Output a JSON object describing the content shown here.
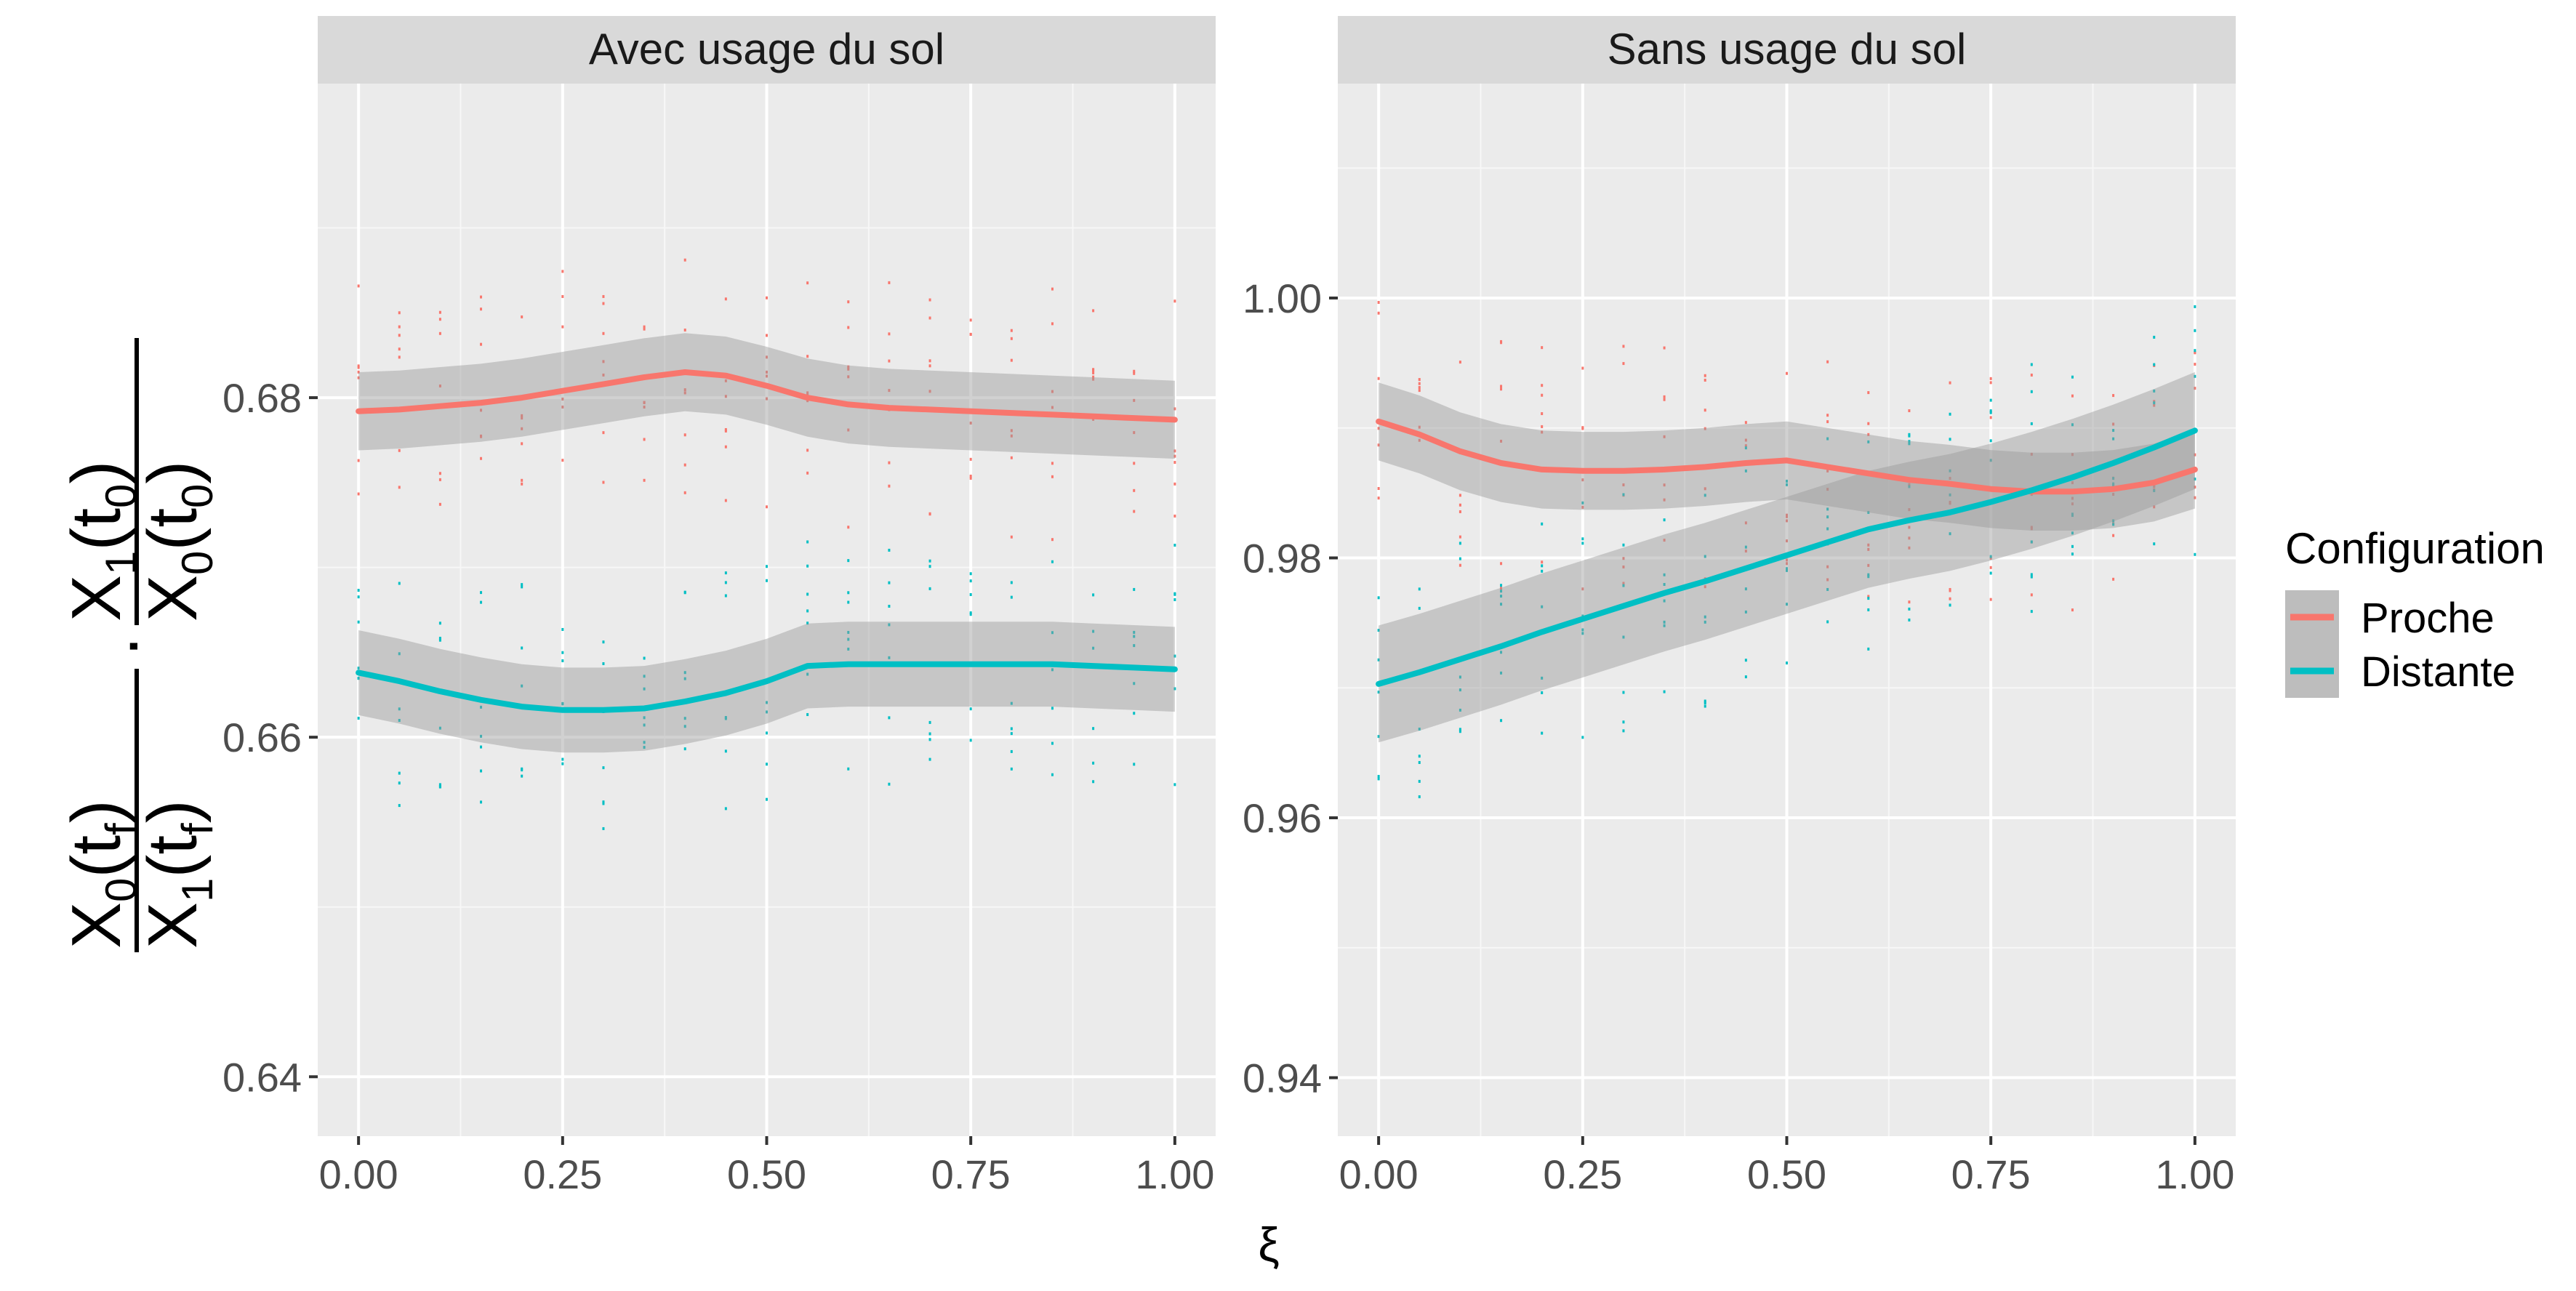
{
  "chart_data": {
    "type": "line",
    "xlabel": "ξ",
    "ylabel": {
      "num1_main": "X",
      "num1_sub": "0",
      "num1_arg": "(t",
      "num1_argsub": "f",
      "num1_close": ")",
      "den1_main": "X",
      "den1_sub": "1",
      "den1_arg": "(t",
      "den1_argsub": "f",
      "den1_close": ")",
      "dot": "·",
      "num2_main": "X",
      "num2_sub": "1",
      "num2_arg": "(t",
      "num2_argsub": "0",
      "num2_close": ")",
      "den2_main": "X",
      "den2_sub": "0",
      "den2_arg": "(t",
      "den2_argsub": "0",
      "den2_close": ")"
    },
    "legend": {
      "title": "Configuration",
      "position": "right",
      "entries": [
        {
          "name": "Proche",
          "color": "#F8766D"
        },
        {
          "name": "Distante",
          "color": "#00BFC4"
        }
      ]
    },
    "x_ticks": [
      0,
      0.25,
      0.5,
      0.75,
      1
    ],
    "x_tick_labels": [
      "0.00",
      "0.25",
      "0.50",
      "0.75",
      "1.00"
    ],
    "xlim": [
      -0.05,
      1.05
    ],
    "grid": true,
    "panels": [
      {
        "title": "Avec usage du sol",
        "ylim": [
          0.6365,
          0.6985
        ],
        "y_ticks": [
          0.64,
          0.66,
          0.68
        ],
        "y_tick_labels": [
          "0.64",
          "0.66",
          "0.68"
        ],
        "series": [
          {
            "name": "Proche",
            "x": [
              0,
              0.05,
              0.1,
              0.15,
              0.2,
              0.25,
              0.3,
              0.35,
              0.4,
              0.45,
              0.5,
              0.55,
              0.6,
              0.65,
              0.7,
              0.75,
              0.8,
              0.85,
              0.9,
              0.95,
              1
            ],
            "y": [
              0.6792,
              0.6793,
              0.6795,
              0.6797,
              0.68,
              0.6804,
              0.6808,
              0.6812,
              0.6815,
              0.6813,
              0.6807,
              0.68,
              0.6796,
              0.6794,
              0.6793,
              0.6792,
              0.6791,
              0.679,
              0.6789,
              0.6788,
              0.6787
            ],
            "band": 0.0023
          },
          {
            "name": "Distante",
            "x": [
              0,
              0.05,
              0.1,
              0.15,
              0.2,
              0.25,
              0.3,
              0.35,
              0.4,
              0.45,
              0.5,
              0.55,
              0.6,
              0.65,
              0.7,
              0.75,
              0.8,
              0.85,
              0.9,
              0.95,
              1
            ],
            "y": [
              0.6638,
              0.6633,
              0.6627,
              0.6622,
              0.6618,
              0.6616,
              0.6616,
              0.6617,
              0.6621,
              0.6626,
              0.6633,
              0.6642,
              0.6643,
              0.6643,
              0.6643,
              0.6643,
              0.6643,
              0.6643,
              0.6642,
              0.6641,
              0.664
            ],
            "band": 0.0025
          }
        ]
      },
      {
        "title": "Sans usage du sol",
        "ylim": [
          0.9355,
          1.0165
        ],
        "y_ticks": [
          0.94,
          0.96,
          0.98,
          1.0
        ],
        "y_tick_labels": [
          "0.94",
          "0.96",
          "0.98",
          "1.00"
        ],
        "series": [
          {
            "name": "Proche",
            "x": [
              0,
              0.05,
              0.1,
              0.15,
              0.2,
              0.25,
              0.3,
              0.35,
              0.4,
              0.45,
              0.5,
              0.55,
              0.6,
              0.65,
              0.7,
              0.75,
              0.8,
              0.85,
              0.9,
              0.95,
              1
            ],
            "y": [
              0.9905,
              0.9895,
              0.9882,
              0.9873,
              0.9868,
              0.9867,
              0.9867,
              0.9868,
              0.987,
              0.9873,
              0.9875,
              0.987,
              0.9865,
              0.986,
              0.9857,
              0.9853,
              0.9851,
              0.9851,
              0.9853,
              0.9858,
              0.9868
            ],
            "band": 0.003
          },
          {
            "name": "Distante",
            "x": [
              0,
              0.05,
              0.1,
              0.15,
              0.2,
              0.25,
              0.3,
              0.35,
              0.4,
              0.45,
              0.5,
              0.55,
              0.6,
              0.65,
              0.7,
              0.75,
              0.8,
              0.85,
              0.9,
              0.95,
              1
            ],
            "y": [
              0.9703,
              0.9712,
              0.9722,
              0.9732,
              0.9743,
              0.9753,
              0.9763,
              0.9773,
              0.9782,
              0.9792,
              0.9802,
              0.9812,
              0.9822,
              0.9829,
              0.9835,
              0.9843,
              0.9852,
              0.9862,
              0.9873,
              0.9885,
              0.9898
            ],
            "band": 0.0045
          }
        ]
      }
    ]
  }
}
